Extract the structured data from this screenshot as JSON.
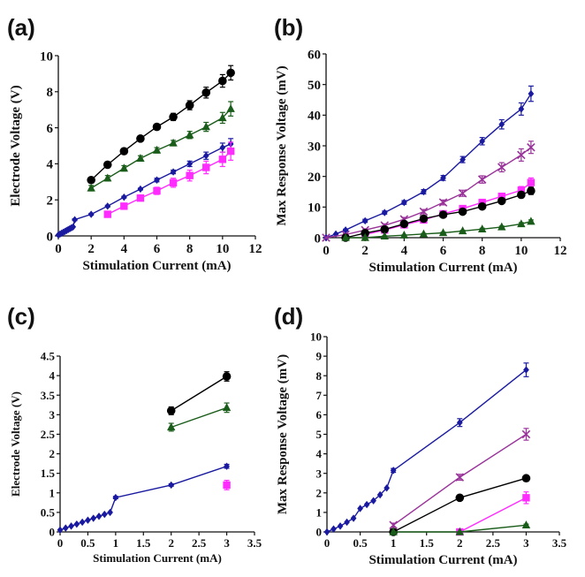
{
  "chart_data": [
    {
      "panel": "(a)",
      "type": "line",
      "xlabel": "Stimulation Current (mA)",
      "ylabel": "Electrode Voltage (V)",
      "xlim": [
        0,
        12
      ],
      "ylim": [
        0,
        10
      ],
      "xticks": [
        "0",
        "2",
        "4",
        "6",
        "8",
        "10",
        "12"
      ],
      "yticks": [
        "0",
        "2",
        "4",
        "6",
        "8",
        "10"
      ],
      "series": [
        {
          "color": "#000000",
          "marker": "circle",
          "x": [
            2,
            3,
            4,
            5,
            6,
            7,
            8,
            9,
            10,
            10.5
          ],
          "y": [
            3.1,
            3.95,
            4.7,
            5.4,
            6.05,
            6.6,
            7.25,
            7.95,
            8.6,
            9.05
          ],
          "err": [
            0.15,
            0.15,
            0.15,
            0.15,
            0.15,
            0.2,
            0.25,
            0.3,
            0.35,
            0.4
          ]
        },
        {
          "color": "#1a5c1a",
          "marker": "triangle",
          "x": [
            2,
            3,
            4,
            5,
            6,
            7,
            8,
            9,
            10,
            10.5
          ],
          "y": [
            2.65,
            3.2,
            3.75,
            4.3,
            4.75,
            5.15,
            5.6,
            6.05,
            6.55,
            7.05
          ],
          "err": [
            0.15,
            0.15,
            0.15,
            0.15,
            0.15,
            0.15,
            0.2,
            0.25,
            0.3,
            0.4
          ]
        },
        {
          "color": "#1a1aa0",
          "marker": "diamond",
          "x": [
            0,
            0.1,
            0.2,
            0.3,
            0.4,
            0.5,
            0.6,
            0.7,
            0.8,
            0.9,
            1,
            2,
            3,
            4,
            5,
            6,
            7,
            8,
            9,
            10,
            10.5
          ],
          "y": [
            0.05,
            0.1,
            0.15,
            0.2,
            0.25,
            0.3,
            0.35,
            0.4,
            0.45,
            0.5,
            0.9,
            1.2,
            1.65,
            2.15,
            2.6,
            3.1,
            3.55,
            4,
            4.45,
            4.9,
            5.1
          ],
          "err": [
            0,
            0,
            0,
            0,
            0,
            0,
            0,
            0,
            0,
            0,
            0.05,
            0.05,
            0.05,
            0.05,
            0.05,
            0.1,
            0.1,
            0.15,
            0.2,
            0.25,
            0.3
          ]
        },
        {
          "color": "#ff2bff",
          "marker": "square",
          "x": [
            3,
            4,
            5,
            6,
            7,
            8,
            9,
            10,
            10.5
          ],
          "y": [
            1.2,
            1.65,
            2.1,
            2.5,
            2.95,
            3.35,
            3.8,
            4.25,
            4.7
          ],
          "err": [
            0.15,
            0.15,
            0.15,
            0.2,
            0.25,
            0.3,
            0.35,
            0.4,
            0.5
          ]
        }
      ]
    },
    {
      "panel": "(b)",
      "type": "line",
      "xlabel": "Stimulation Current (mA)",
      "ylabel": "Max Response Voltage (mV)",
      "xlim": [
        0,
        12
      ],
      "ylim": [
        0,
        60
      ],
      "xticks": [
        "0",
        "2",
        "4",
        "6",
        "8",
        "10",
        "12"
      ],
      "yticks": [
        "0",
        "10",
        "20",
        "30",
        "40",
        "50",
        "60"
      ],
      "series": [
        {
          "color": "#1a1aa0",
          "marker": "diamond",
          "x": [
            0,
            0.5,
            1,
            2,
            3,
            4,
            5,
            6,
            7,
            8,
            9,
            10,
            10.5
          ],
          "y": [
            0,
            1.2,
            2.5,
            5.5,
            8.2,
            11.5,
            15,
            19.5,
            25.5,
            31.5,
            37,
            42,
            47
          ],
          "err": [
            0,
            0,
            0.3,
            0.5,
            0.5,
            0.6,
            0.7,
            0.8,
            1,
            1.2,
            1.5,
            2,
            2.5
          ]
        },
        {
          "color": "#993399",
          "marker": "x",
          "x": [
            0,
            1,
            2,
            3,
            4,
            5,
            6,
            7,
            8,
            9,
            10,
            10.5
          ],
          "y": [
            0,
            1,
            2.5,
            4,
            6,
            8.5,
            11.5,
            14.5,
            19,
            23,
            27,
            29.5
          ],
          "err": [
            0,
            0.3,
            0.4,
            0.5,
            0.6,
            0.7,
            0.8,
            1,
            1.2,
            1.5,
            2,
            2
          ]
        },
        {
          "color": "#ff2bff",
          "marker": "square",
          "x": [
            2,
            3,
            4,
            5,
            6,
            7,
            8,
            9,
            10,
            10.5
          ],
          "y": [
            1,
            2.5,
            4.2,
            5.8,
            7.8,
            9.5,
            11.5,
            13.5,
            15.5,
            18
          ],
          "err": [
            0.3,
            0.4,
            0.5,
            0.5,
            0.6,
            0.7,
            0.8,
            1,
            1.2,
            1.5
          ]
        },
        {
          "color": "#000000",
          "marker": "circle",
          "x": [
            1,
            2,
            3,
            4,
            5,
            6,
            7,
            8,
            9,
            10,
            10.5
          ],
          "y": [
            0,
            1.5,
            2.7,
            4.5,
            6.2,
            7.5,
            8.5,
            10.2,
            12,
            14,
            15.3
          ],
          "err": [
            0,
            0.3,
            0.4,
            0.5,
            0.5,
            0.6,
            0.6,
            0.7,
            0.8,
            1,
            1.2
          ]
        },
        {
          "color": "#1a5c1a",
          "marker": "triangle",
          "x": [
            1,
            2,
            3,
            4,
            5,
            6,
            7,
            8,
            9,
            10,
            10.5
          ],
          "y": [
            0,
            0,
            0.5,
            0.8,
            1.2,
            1.6,
            2.2,
            2.8,
            3.5,
            4.5,
            5.3
          ],
          "err": [
            0,
            0,
            0.1,
            0.1,
            0.2,
            0.2,
            0.2,
            0.3,
            0.3,
            0.4,
            0.5
          ]
        }
      ]
    },
    {
      "panel": "(c)",
      "type": "line",
      "xlabel": "Stimulation Current (mA)",
      "ylabel": "Electrode Voltage (V)",
      "xlim": [
        0,
        3.5
      ],
      "ylim": [
        0,
        4.5
      ],
      "xticks": [
        "0",
        "0.5",
        "1",
        "1.5",
        "2",
        "2.5",
        "3",
        "3.5"
      ],
      "yticks": [
        "0",
        "0.5",
        "1",
        "1.5",
        "2",
        "2.5",
        "3",
        "3.5",
        "4",
        "4.5"
      ],
      "series": [
        {
          "color": "#000000",
          "marker": "circle",
          "x": [
            2,
            3
          ],
          "y": [
            3.1,
            3.98
          ],
          "err": [
            0.1,
            0.12
          ]
        },
        {
          "color": "#1a5c1a",
          "marker": "triangle",
          "x": [
            2,
            3
          ],
          "y": [
            2.68,
            3.18
          ],
          "err": [
            0.1,
            0.12
          ]
        },
        {
          "color": "#1a1aa0",
          "marker": "diamond",
          "x": [
            0,
            0.1,
            0.2,
            0.3,
            0.4,
            0.5,
            0.6,
            0.7,
            0.8,
            0.9,
            1,
            2,
            3
          ],
          "y": [
            0.05,
            0.1,
            0.15,
            0.2,
            0.25,
            0.3,
            0.35,
            0.4,
            0.45,
            0.5,
            0.88,
            1.2,
            1.68
          ],
          "err": [
            0,
            0,
            0,
            0,
            0,
            0,
            0,
            0,
            0,
            0,
            0.03,
            0.03,
            0.05
          ]
        },
        {
          "color": "#ff2bff",
          "marker": "square",
          "x": [
            3
          ],
          "y": [
            1.2
          ],
          "err": [
            0.12
          ]
        }
      ]
    },
    {
      "panel": "(d)",
      "type": "line",
      "xlabel": "Stimulation Current (mA)",
      "ylabel": "Max Response Voltage (mV)",
      "xlim": [
        0,
        3.5
      ],
      "ylim": [
        0,
        10
      ],
      "xticks": [
        "0",
        "0.5",
        "1",
        "1.5",
        "2",
        "2.5",
        "3",
        "3.5"
      ],
      "yticks": [
        "0",
        "1",
        "2",
        "3",
        "4",
        "5",
        "6",
        "7",
        "8",
        "9",
        "10"
      ],
      "series": [
        {
          "color": "#1a1aa0",
          "marker": "diamond",
          "x": [
            0,
            0.1,
            0.2,
            0.3,
            0.4,
            0.5,
            0.6,
            0.7,
            0.8,
            0.9,
            1,
            2,
            3
          ],
          "y": [
            0,
            0.15,
            0.3,
            0.5,
            0.7,
            1.2,
            1.4,
            1.6,
            1.9,
            2.25,
            3.15,
            5.6,
            8.3
          ],
          "err": [
            0,
            0,
            0,
            0,
            0,
            0,
            0,
            0,
            0,
            0,
            0.1,
            0.2,
            0.35
          ]
        },
        {
          "color": "#993399",
          "marker": "x",
          "x": [
            1,
            2,
            3
          ],
          "y": [
            0.35,
            2.8,
            5
          ],
          "err": [
            0.1,
            0.15,
            0.3
          ]
        },
        {
          "color": "#000000",
          "marker": "circle",
          "x": [
            1,
            2,
            3
          ],
          "y": [
            0,
            1.75,
            2.75
          ],
          "err": [
            0,
            0.1,
            0.1
          ]
        },
        {
          "color": "#ff2bff",
          "marker": "square",
          "x": [
            2,
            3
          ],
          "y": [
            0,
            1.75
          ],
          "err": [
            0,
            0.3
          ]
        },
        {
          "color": "#1a5c1a",
          "marker": "triangle",
          "x": [
            1,
            2,
            3
          ],
          "y": [
            0,
            0,
            0.35
          ],
          "err": [
            0,
            0,
            0.05
          ]
        }
      ]
    }
  ]
}
